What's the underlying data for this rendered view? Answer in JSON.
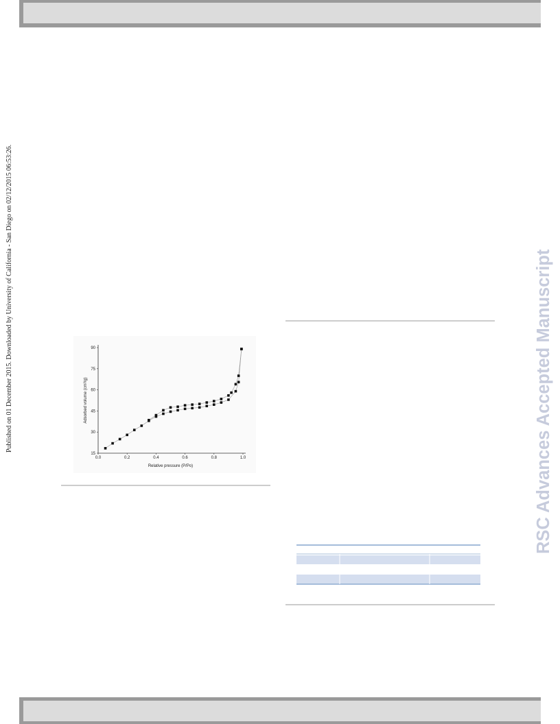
{
  "side_note": "Published on 01 December 2015. Downloaded by University of California - San Diego on 02/12/2015 06:53:26.",
  "watermark": "RSC Advances Accepted Manuscript",
  "chart_data": {
    "type": "scatter",
    "xlabel": "Relative pressure (P/Po)",
    "ylabel": "Adsorbed volume (cm³/g)",
    "xlim": [
      0,
      1
    ],
    "ylim": [
      15,
      90
    ],
    "xticks": [
      {
        "value": 0,
        "label": "0.0"
      },
      0.2,
      0.4,
      0.6,
      0.8,
      {
        "value": 1,
        "label": "1.0"
      }
    ],
    "yticks": [
      15,
      30,
      45,
      60,
      75,
      90
    ],
    "series": [
      {
        "color": "#111111",
        "x": [
          0.05,
          0.1,
          0.15,
          0.2,
          0.25,
          0.3,
          0.35,
          0.4,
          0.45,
          0.5,
          0.55,
          0.6,
          0.65,
          0.7,
          0.75,
          0.8,
          0.85,
          0.9,
          0.95,
          0.97,
          0.99
        ],
        "values": [
          18.5,
          22,
          25,
          28,
          31.5,
          34.5,
          38,
          41,
          43,
          44.5,
          45.5,
          46.5,
          47,
          47.5,
          48.5,
          49.5,
          51,
          53,
          59,
          65.5,
          89
        ]
      },
      {
        "color": "#111111",
        "x": [
          0.99,
          0.97,
          0.95,
          0.92,
          0.9,
          0.85,
          0.8,
          0.75,
          0.7,
          0.65,
          0.6,
          0.55,
          0.5,
          0.45,
          0.4,
          0.35
        ],
        "values": [
          89,
          70,
          64,
          58,
          56,
          53.5,
          52,
          51,
          50,
          49.5,
          49,
          48,
          47.5,
          45.5,
          42,
          38.5
        ]
      }
    ]
  }
}
